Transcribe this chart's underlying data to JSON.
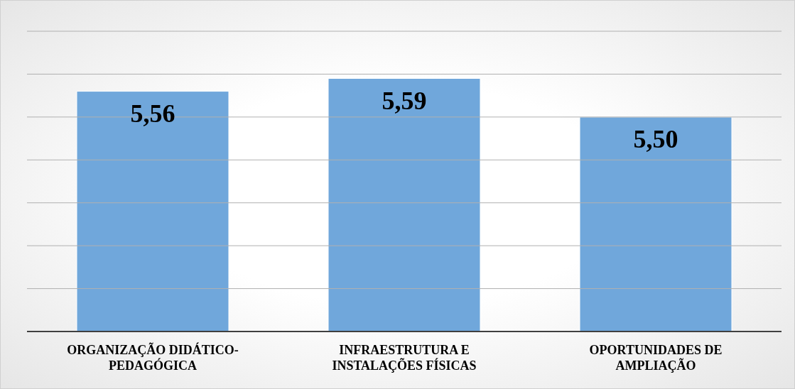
{
  "chart_data": {
    "type": "bar",
    "categories": [
      "ORGANIZAÇÃO DIDÁTICO-PEDAGÓGICA",
      "INFRAESTRUTURA E INSTALAÇÕES FÍSICAS",
      "OPORTUNIDADES DE AMPLIAÇÃO"
    ],
    "values": [
      5.56,
      5.59,
      5.5
    ],
    "color": "#70a7db",
    "value_labels": [
      "5,56",
      "5,59",
      "5,50"
    ],
    "ylim": [
      5.0,
      5.7
    ],
    "yticks": [
      {
        "value": 5.0,
        "label": null
      },
      {
        "value": 5.1,
        "label": null
      },
      {
        "value": 5.2,
        "label": null
      },
      {
        "value": 5.3,
        "label": null
      },
      {
        "value": 5.4,
        "label": null
      },
      {
        "value": 5.5,
        "label": null
      },
      {
        "value": 5.6,
        "label": null
      },
      {
        "value": 5.7,
        "label": null
      }
    ],
    "grid": "y",
    "tick_labels": "x",
    "legend": false
  }
}
